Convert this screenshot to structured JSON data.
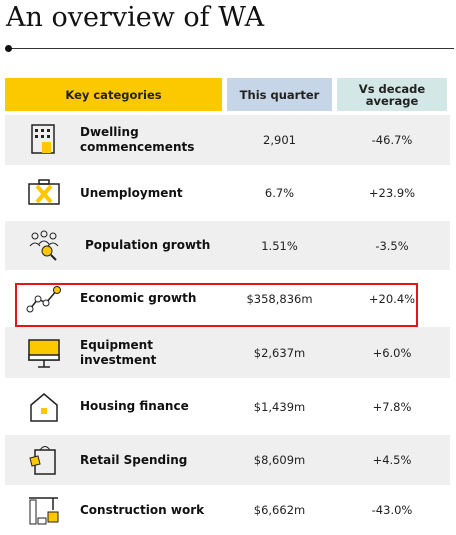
{
  "header": {
    "title": "An overview of WA"
  },
  "table": {
    "header": [
      "Key categories",
      "This quarter",
      "Vs decade average"
    ],
    "rows": [
      [
        "Dwelling commencements",
        "2,901",
        "-46.7%"
      ],
      [
        "Unemployment",
        "6.7%",
        "+23.9%"
      ],
      [
        "Population growth",
        "1.51%",
        "-3.5%"
      ],
      [
        "Economic growth",
        "$358,836m",
        "+20.4%"
      ],
      [
        "Equipment investment",
        "$2,637m",
        "+6.0%"
      ],
      [
        "Housing finance",
        "$1,439m",
        "+7.8%"
      ],
      [
        "Retail Spending",
        "$8,609m",
        "+4.5%"
      ],
      [
        "Construction work",
        "$6,662m",
        "-43.0%"
      ]
    ]
  }
}
